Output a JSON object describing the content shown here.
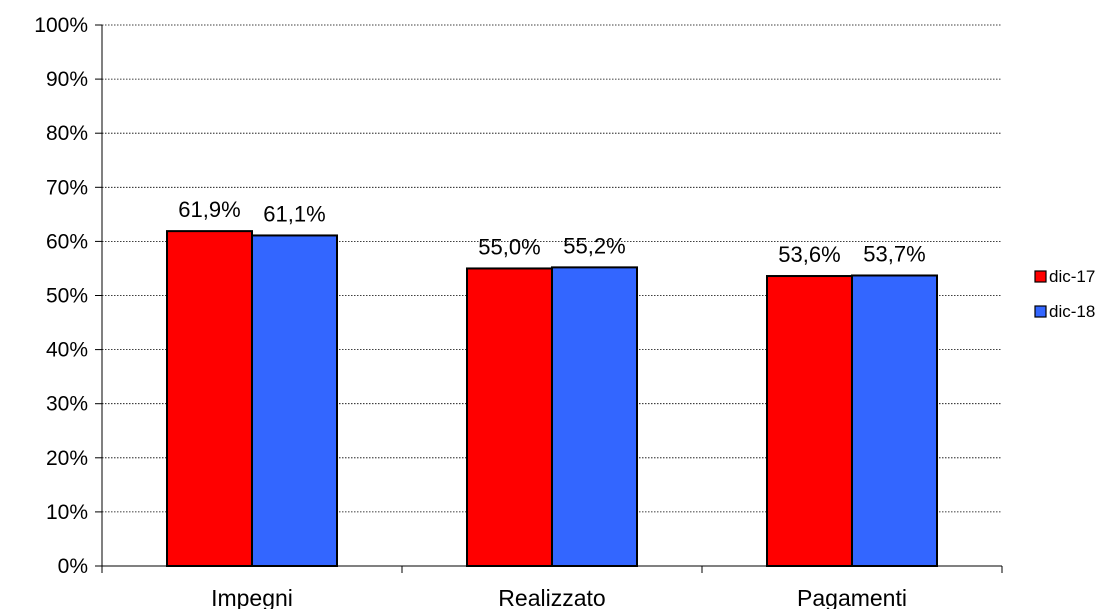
{
  "chart_data": {
    "type": "bar",
    "categories": [
      "Impegni",
      "Realizzato",
      "Pagamenti"
    ],
    "series": [
      {
        "name": "dic-17",
        "values": [
          61.9,
          55.0,
          53.6
        ],
        "labels": [
          "61,9%",
          "55,0%",
          "53,6%"
        ],
        "color": "#ff0000"
      },
      {
        "name": "dic-18",
        "values": [
          61.1,
          55.2,
          53.7
        ],
        "labels": [
          "61,1%",
          "55,2%",
          "53,7%"
        ],
        "color": "#3366ff"
      }
    ],
    "yticks": [
      "0%",
      "10%",
      "20%",
      "30%",
      "40%",
      "50%",
      "60%",
      "70%",
      "80%",
      "90%",
      "100%"
    ],
    "ylim": [
      0,
      100
    ],
    "grid": true,
    "legend_position": "right"
  }
}
